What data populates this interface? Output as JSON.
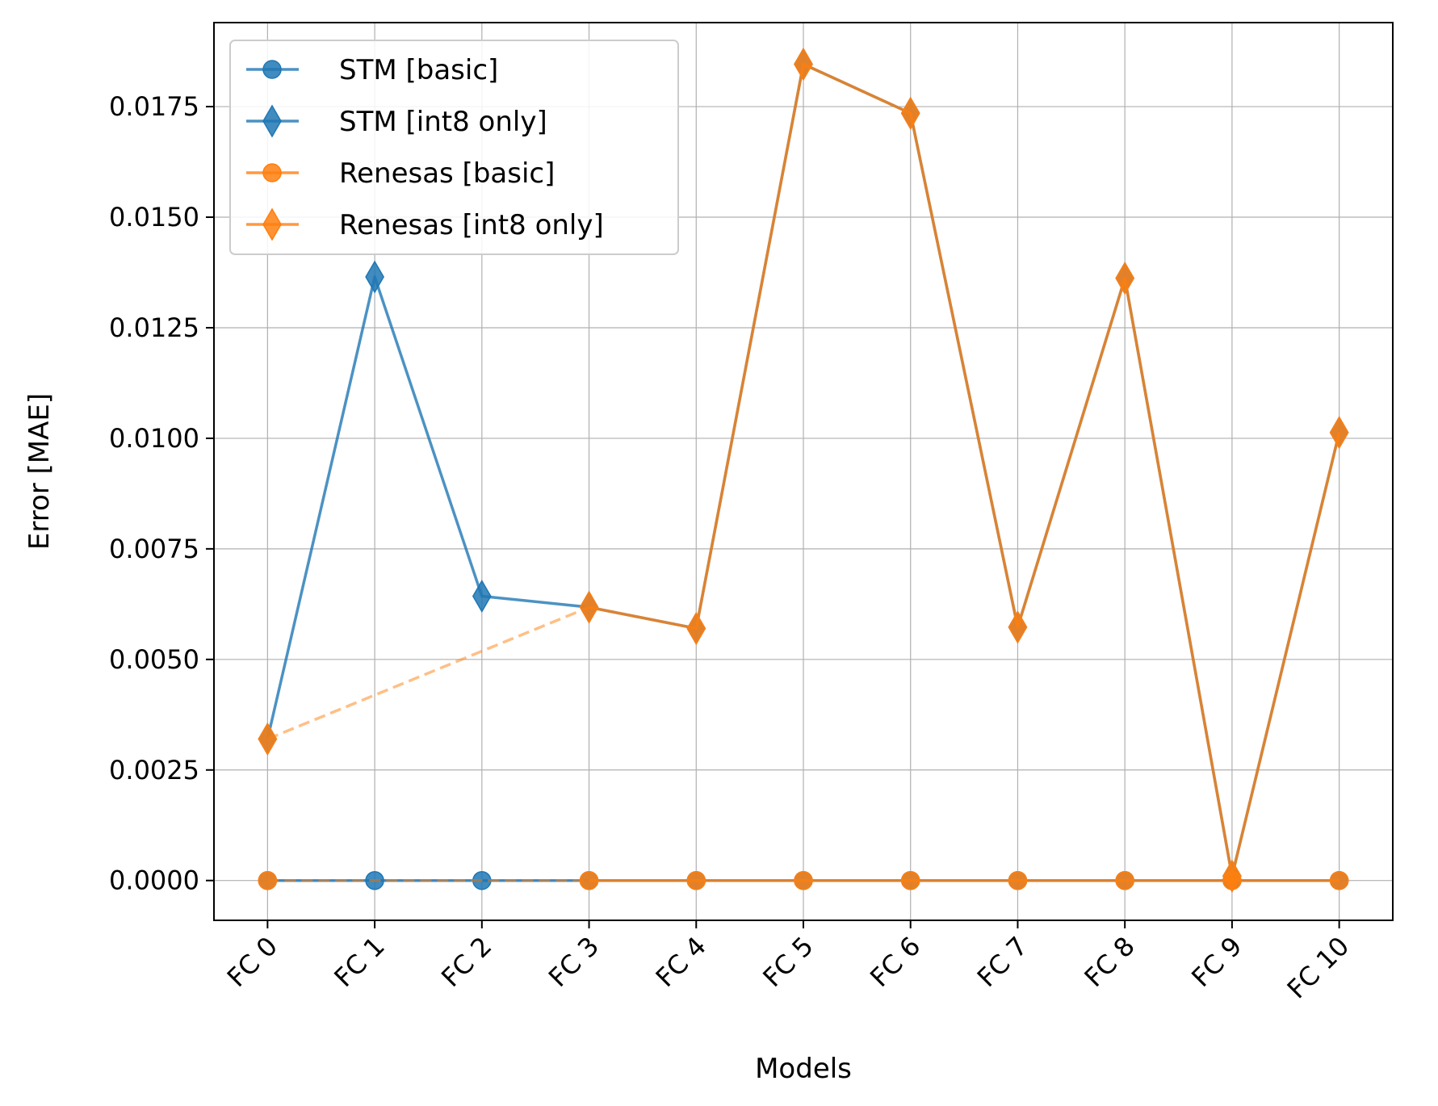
{
  "chart_data": {
    "type": "line",
    "title": "",
    "xlabel": "Models",
    "ylabel": "Error [MAE]",
    "categories": [
      "FC 0",
      "FC 1",
      "FC 2",
      "FC 3",
      "FC 4",
      "FC 5",
      "FC 6",
      "FC 7",
      "FC 8",
      "FC 9",
      "FC 10"
    ],
    "ylim": [
      -0.0009,
      0.0194
    ],
    "yticks": [
      0.0,
      0.0025,
      0.005,
      0.0075,
      0.01,
      0.0125,
      0.015,
      0.0175
    ],
    "ytick_labels": [
      "0.0000",
      "0.0025",
      "0.0050",
      "0.0075",
      "0.0100",
      "0.0125",
      "0.0150",
      "0.0175"
    ],
    "grid": true,
    "legend_position": "top-left",
    "series": [
      {
        "name": "STM [basic]",
        "color": "#1f77b4",
        "marker": "circle",
        "values": [
          0.0,
          0.0,
          0.0,
          0.0,
          0.0,
          0.0,
          0.0,
          0.0,
          0.0,
          0.0,
          0.0
        ]
      },
      {
        "name": "STM [int8 only]",
        "color": "#1f77b4",
        "marker": "diamond",
        "values": [
          0.0032,
          0.01365,
          0.00643,
          0.00618,
          0.0057,
          0.01846,
          0.01735,
          0.00573,
          0.01362,
          0.0001,
          0.01013
        ]
      },
      {
        "name": "Renesas [basic]",
        "color": "#ff7f0e",
        "marker": "circle",
        "values": [
          0.0,
          null,
          null,
          0.0,
          0.0,
          0.0,
          0.0,
          0.0,
          0.0,
          0.0,
          0.0
        ]
      },
      {
        "name": "Renesas [int8 only]",
        "color": "#ff7f0e",
        "marker": "diamond",
        "values": [
          0.0032,
          null,
          null,
          0.00618,
          0.0057,
          0.01846,
          0.01735,
          0.00573,
          0.01362,
          0.0001,
          0.01013
        ]
      }
    ]
  }
}
